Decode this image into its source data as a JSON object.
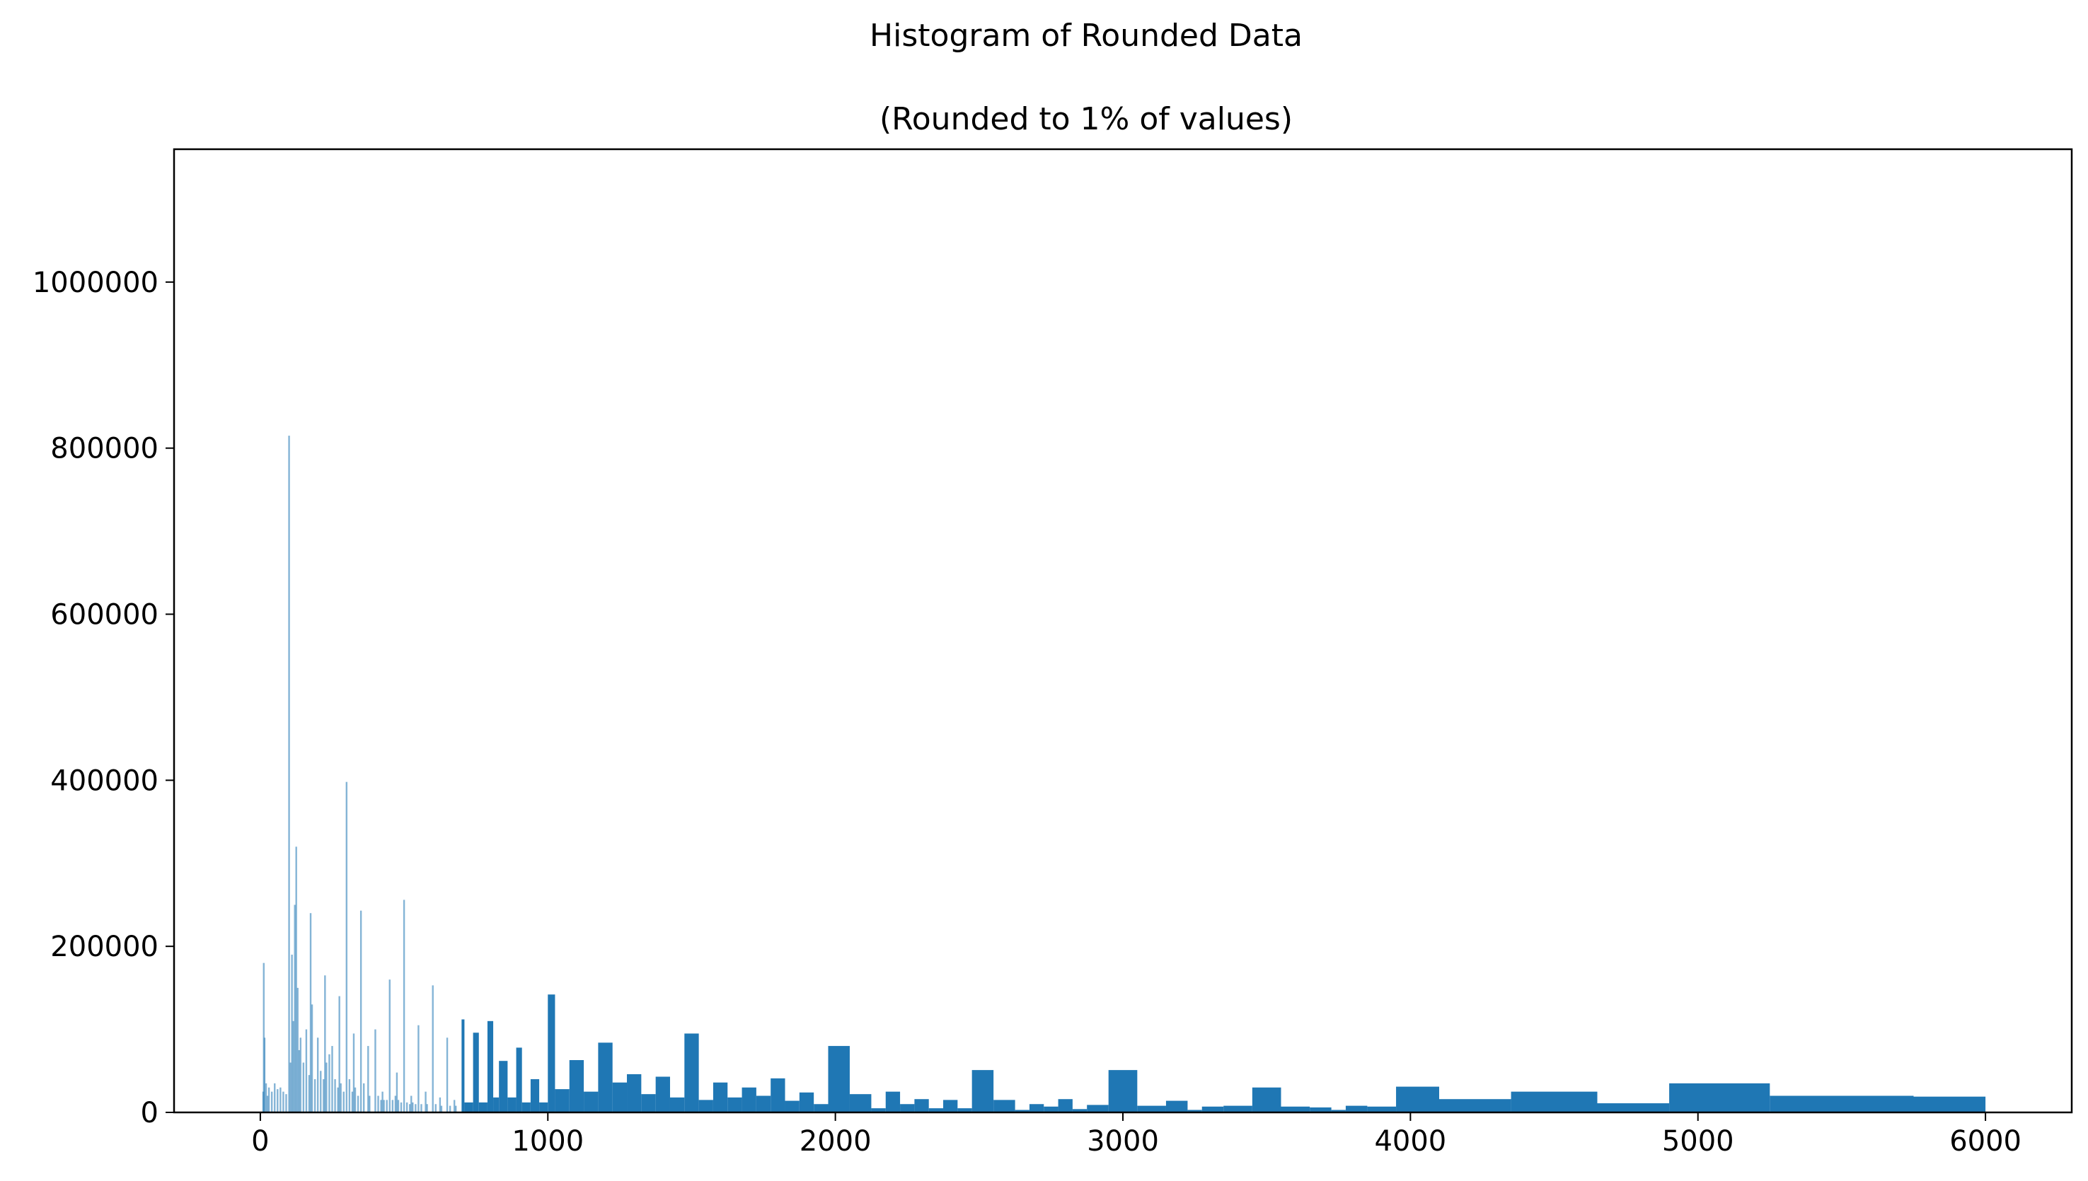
{
  "chart_data": {
    "type": "bar",
    "title": "Histogram of Rounded Data",
    "subtitle": "(Rounded to 1% of values)",
    "xlabel": "",
    "ylabel": "",
    "xlim": [
      -300,
      6300
    ],
    "ylim": [
      0,
      1160000
    ],
    "xticks": [
      "0",
      "1000",
      "2000",
      "3000",
      "4000",
      "5000",
      "6000"
    ],
    "yticks": [
      "0",
      "200000",
      "400000",
      "600000",
      "800000",
      "1000000"
    ],
    "grid": false,
    "legend": "none",
    "colors": {
      "bar": "#1f77b4",
      "spike": "#1f77b4"
    },
    "spikes": [
      {
        "x": 10,
        "value": 25000
      },
      {
        "x": 12,
        "value": 180000
      },
      {
        "x": 15,
        "value": 90000
      },
      {
        "x": 20,
        "value": 35000
      },
      {
        "x": 25,
        "value": 20000
      },
      {
        "x": 30,
        "value": 30000
      },
      {
        "x": 40,
        "value": 25000
      },
      {
        "x": 50,
        "value": 35000
      },
      {
        "x": 60,
        "value": 28000
      },
      {
        "x": 70,
        "value": 30000
      },
      {
        "x": 80,
        "value": 25000
      },
      {
        "x": 90,
        "value": 22000
      },
      {
        "x": 100,
        "value": 815000
      },
      {
        "x": 105,
        "value": 60000
      },
      {
        "x": 110,
        "value": 190000
      },
      {
        "x": 115,
        "value": 110000
      },
      {
        "x": 120,
        "value": 250000
      },
      {
        "x": 125,
        "value": 320000
      },
      {
        "x": 130,
        "value": 150000
      },
      {
        "x": 135,
        "value": 75000
      },
      {
        "x": 140,
        "value": 90000
      },
      {
        "x": 150,
        "value": 60000
      },
      {
        "x": 160,
        "value": 100000
      },
      {
        "x": 170,
        "value": 45000
      },
      {
        "x": 175,
        "value": 240000
      },
      {
        "x": 180,
        "value": 130000
      },
      {
        "x": 190,
        "value": 40000
      },
      {
        "x": 200,
        "value": 90000
      },
      {
        "x": 210,
        "value": 50000
      },
      {
        "x": 220,
        "value": 40000
      },
      {
        "x": 225,
        "value": 165000
      },
      {
        "x": 230,
        "value": 60000
      },
      {
        "x": 240,
        "value": 70000
      },
      {
        "x": 250,
        "value": 80000
      },
      {
        "x": 260,
        "value": 40000
      },
      {
        "x": 270,
        "value": 30000
      },
      {
        "x": 275,
        "value": 140000
      },
      {
        "x": 280,
        "value": 35000
      },
      {
        "x": 290,
        "value": 25000
      },
      {
        "x": 300,
        "value": 398000
      },
      {
        "x": 310,
        "value": 40000
      },
      {
        "x": 320,
        "value": 25000
      },
      {
        "x": 325,
        "value": 95000
      },
      {
        "x": 330,
        "value": 30000
      },
      {
        "x": 340,
        "value": 20000
      },
      {
        "x": 350,
        "value": 243000
      },
      {
        "x": 360,
        "value": 35000
      },
      {
        "x": 375,
        "value": 80000
      },
      {
        "x": 380,
        "value": 20000
      },
      {
        "x": 400,
        "value": 100000
      },
      {
        "x": 410,
        "value": 20000
      },
      {
        "x": 420,
        "value": 15000
      },
      {
        "x": 425,
        "value": 25000
      },
      {
        "x": 430,
        "value": 15000
      },
      {
        "x": 440,
        "value": 15000
      },
      {
        "x": 450,
        "value": 160000
      },
      {
        "x": 460,
        "value": 15000
      },
      {
        "x": 470,
        "value": 20000
      },
      {
        "x": 475,
        "value": 48000
      },
      {
        "x": 480,
        "value": 15000
      },
      {
        "x": 490,
        "value": 12000
      },
      {
        "x": 500,
        "value": 256000
      },
      {
        "x": 510,
        "value": 12000
      },
      {
        "x": 520,
        "value": 10000
      },
      {
        "x": 525,
        "value": 20000
      },
      {
        "x": 530,
        "value": 12000
      },
      {
        "x": 540,
        "value": 10000
      },
      {
        "x": 550,
        "value": 105000
      },
      {
        "x": 560,
        "value": 10000
      },
      {
        "x": 575,
        "value": 25000
      },
      {
        "x": 580,
        "value": 10000
      },
      {
        "x": 600,
        "value": 153000
      },
      {
        "x": 610,
        "value": 10000
      },
      {
        "x": 625,
        "value": 18000
      },
      {
        "x": 630,
        "value": 8000
      },
      {
        "x": 650,
        "value": 90000
      },
      {
        "x": 660,
        "value": 8000
      },
      {
        "x": 675,
        "value": 15000
      },
      {
        "x": 680,
        "value": 8000
      }
    ],
    "bins": [
      {
        "left": 700,
        "right": 710,
        "value": 112000
      },
      {
        "left": 710,
        "right": 740,
        "value": 12000
      },
      {
        "left": 740,
        "right": 760,
        "value": 96000
      },
      {
        "left": 760,
        "right": 790,
        "value": 12000
      },
      {
        "left": 790,
        "right": 810,
        "value": 110000
      },
      {
        "left": 810,
        "right": 830,
        "value": 18000
      },
      {
        "left": 830,
        "right": 860,
        "value": 62000
      },
      {
        "left": 860,
        "right": 890,
        "value": 18000
      },
      {
        "left": 890,
        "right": 910,
        "value": 78000
      },
      {
        "left": 910,
        "right": 940,
        "value": 12000
      },
      {
        "left": 940,
        "right": 970,
        "value": 40000
      },
      {
        "left": 970,
        "right": 1000,
        "value": 12000
      },
      {
        "left": 1000,
        "right": 1025,
        "value": 142000
      },
      {
        "left": 1025,
        "right": 1075,
        "value": 28000
      },
      {
        "left": 1075,
        "right": 1125,
        "value": 63000
      },
      {
        "left": 1125,
        "right": 1175,
        "value": 25000
      },
      {
        "left": 1175,
        "right": 1225,
        "value": 84000
      },
      {
        "left": 1225,
        "right": 1275,
        "value": 36000
      },
      {
        "left": 1275,
        "right": 1325,
        "value": 46000
      },
      {
        "left": 1325,
        "right": 1375,
        "value": 22000
      },
      {
        "left": 1375,
        "right": 1425,
        "value": 43000
      },
      {
        "left": 1425,
        "right": 1475,
        "value": 18000
      },
      {
        "left": 1475,
        "right": 1525,
        "value": 95000
      },
      {
        "left": 1525,
        "right": 1575,
        "value": 15000
      },
      {
        "left": 1575,
        "right": 1625,
        "value": 36000
      },
      {
        "left": 1625,
        "right": 1675,
        "value": 18000
      },
      {
        "left": 1675,
        "right": 1725,
        "value": 30000
      },
      {
        "left": 1725,
        "right": 1775,
        "value": 20000
      },
      {
        "left": 1775,
        "right": 1825,
        "value": 41000
      },
      {
        "left": 1825,
        "right": 1875,
        "value": 14000
      },
      {
        "left": 1875,
        "right": 1925,
        "value": 24000
      },
      {
        "left": 1925,
        "right": 1975,
        "value": 10000
      },
      {
        "left": 1975,
        "right": 2050,
        "value": 80000
      },
      {
        "left": 2050,
        "right": 2125,
        "value": 22000
      },
      {
        "left": 2125,
        "right": 2175,
        "value": 5000
      },
      {
        "left": 2175,
        "right": 2225,
        "value": 25000
      },
      {
        "left": 2225,
        "right": 2275,
        "value": 10000
      },
      {
        "left": 2275,
        "right": 2325,
        "value": 16000
      },
      {
        "left": 2325,
        "right": 2375,
        "value": 5000
      },
      {
        "left": 2375,
        "right": 2425,
        "value": 15000
      },
      {
        "left": 2425,
        "right": 2475,
        "value": 5000
      },
      {
        "left": 2475,
        "right": 2550,
        "value": 51000
      },
      {
        "left": 2550,
        "right": 2625,
        "value": 15000
      },
      {
        "left": 2625,
        "right": 2675,
        "value": 3000
      },
      {
        "left": 2675,
        "right": 2725,
        "value": 10000
      },
      {
        "left": 2725,
        "right": 2775,
        "value": 7000
      },
      {
        "left": 2775,
        "right": 2825,
        "value": 16000
      },
      {
        "left": 2825,
        "right": 2875,
        "value": 4000
      },
      {
        "left": 2875,
        "right": 2950,
        "value": 9000
      },
      {
        "left": 2950,
        "right": 3050,
        "value": 51000
      },
      {
        "left": 3050,
        "right": 3150,
        "value": 8000
      },
      {
        "left": 3150,
        "right": 3225,
        "value": 14000
      },
      {
        "left": 3225,
        "right": 3275,
        "value": 3000
      },
      {
        "left": 3275,
        "right": 3350,
        "value": 7000
      },
      {
        "left": 3350,
        "right": 3450,
        "value": 8000
      },
      {
        "left": 3450,
        "right": 3550,
        "value": 30000
      },
      {
        "left": 3550,
        "right": 3650,
        "value": 7000
      },
      {
        "left": 3650,
        "right": 3725,
        "value": 6000
      },
      {
        "left": 3725,
        "right": 3775,
        "value": 3000
      },
      {
        "left": 3775,
        "right": 3850,
        "value": 8000
      },
      {
        "left": 3850,
        "right": 3950,
        "value": 7000
      },
      {
        "left": 3950,
        "right": 4100,
        "value": 31000
      },
      {
        "left": 4100,
        "right": 4350,
        "value": 16000
      },
      {
        "left": 4350,
        "right": 4650,
        "value": 25000
      },
      {
        "left": 4650,
        "right": 4900,
        "value": 11000
      },
      {
        "left": 4900,
        "right": 5250,
        "value": 35000
      },
      {
        "left": 5250,
        "right": 5750,
        "value": 20000
      },
      {
        "left": 5750,
        "right": 6000,
        "value": 19000
      }
    ]
  }
}
